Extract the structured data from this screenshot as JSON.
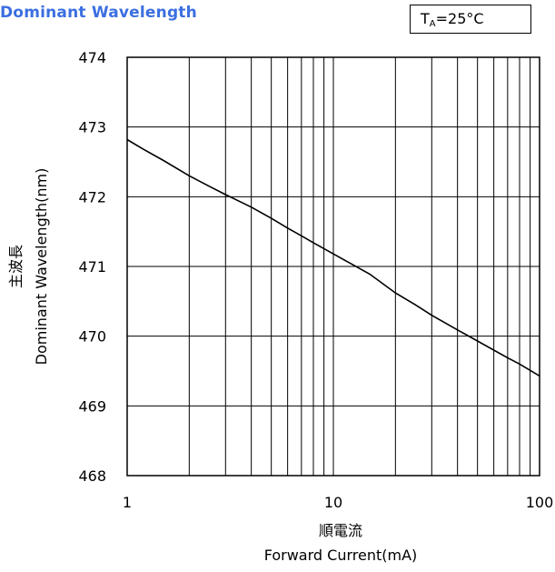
{
  "header": {
    "title": "Dominant Wavelength",
    "condition": {
      "symbol": "T",
      "subscript": "A",
      "value": "=25°C"
    }
  },
  "colors": {
    "title": "#3b6fe0",
    "line": "#000000",
    "grid": "#000000"
  },
  "chart_data": {
    "type": "line",
    "title": "Dominant Wavelength",
    "xlabel_ja": "順電流",
    "xlabel": "Forward Current(mA)",
    "ylabel_ja": "主波長",
    "ylabel": "Dominant Wavelength(nm)",
    "x_scale": "log",
    "xlim": [
      1,
      100
    ],
    "ylim": [
      468,
      474
    ],
    "x_ticks": [
      "1",
      "10",
      "100"
    ],
    "y_ticks": [
      "468",
      "469",
      "470",
      "471",
      "472",
      "473",
      "474"
    ],
    "grid": true,
    "series": [
      {
        "x": [
          1,
          1.2,
          1.5,
          2,
          2.5,
          3,
          4,
          5,
          6,
          7,
          8,
          10,
          12,
          15,
          20,
          25,
          30,
          40,
          50,
          60,
          70,
          80,
          100
        ],
        "y": [
          472.82,
          472.68,
          472.52,
          472.3,
          472.15,
          472.03,
          471.85,
          471.69,
          471.55,
          471.44,
          471.34,
          471.18,
          471.05,
          470.89,
          470.62,
          470.45,
          470.3,
          470.09,
          469.93,
          469.8,
          469.69,
          469.6,
          469.43
        ]
      }
    ]
  }
}
